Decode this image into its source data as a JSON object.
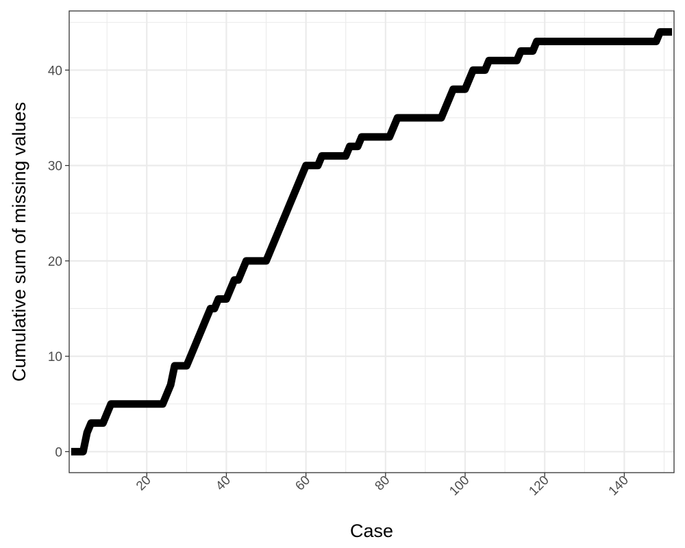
{
  "chart_data": {
    "type": "line",
    "title": "",
    "xlabel": "Case",
    "ylabel": "Cumulative sum of missing values",
    "xlim": [
      0.5,
      152.5
    ],
    "ylim": [
      -2.2,
      46.2
    ],
    "x_ticks": [
      20,
      40,
      60,
      80,
      100,
      120,
      140
    ],
    "y_ticks": [
      0,
      10,
      20,
      30,
      40
    ],
    "x_tick_labels": [
      "20",
      "40",
      "60",
      "80",
      "100",
      "120",
      "140"
    ],
    "y_tick_labels": [
      "0",
      "10",
      "20",
      "30",
      "40"
    ],
    "grid": true,
    "legend": "none",
    "colors": {
      "line": "#000000",
      "grid": "#ebebeb",
      "panel_border": "#333333",
      "tick_text": "#4d4d4d"
    },
    "series": [
      {
        "values": [
          0,
          0,
          0,
          0,
          2,
          3,
          3,
          3,
          3,
          4,
          5,
          5,
          5,
          5,
          5,
          5,
          5,
          5,
          5,
          5,
          5,
          5,
          5,
          5,
          6,
          7,
          9,
          9,
          9,
          9,
          10,
          11,
          12,
          13,
          14,
          15,
          15,
          16,
          16,
          16,
          17,
          18,
          18,
          19,
          20,
          20,
          20,
          20,
          20,
          20,
          21,
          22,
          23,
          24,
          25,
          26,
          27,
          28,
          29,
          30,
          30,
          30,
          30,
          31,
          31,
          31,
          31,
          31,
          31,
          31,
          32,
          32,
          32,
          33,
          33,
          33,
          33,
          33,
          33,
          33,
          33,
          34,
          35,
          35,
          35,
          35,
          35,
          35,
          35,
          35,
          35,
          35,
          35,
          35,
          36,
          37,
          38,
          38,
          38,
          38,
          39,
          40,
          40,
          40,
          40,
          41,
          41,
          41,
          41,
          41,
          41,
          41,
          41,
          42,
          42,
          42,
          42,
          43,
          43,
          43,
          43,
          43,
          43,
          43,
          43,
          43,
          43,
          43,
          43,
          43,
          43,
          43,
          43,
          43,
          43,
          43,
          43,
          43,
          43,
          43,
          43,
          43,
          43,
          43,
          43,
          43,
          43,
          43,
          44,
          44,
          44,
          44
        ]
      }
    ]
  }
}
